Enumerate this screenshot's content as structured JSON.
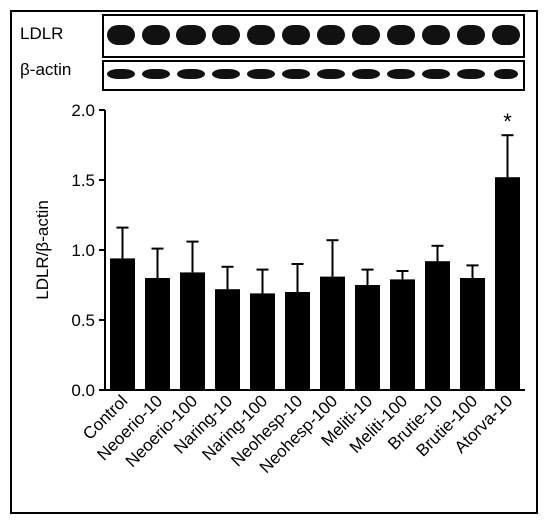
{
  "blots": {
    "ldlr_label": "LDLR",
    "actin_label": "β-actin"
  },
  "chart_data": {
    "type": "bar",
    "ylabel": "LDLR/β-actin",
    "xlabel": "",
    "ylim": [
      0,
      2.0
    ],
    "yticks": [
      "0.0",
      "0.5",
      "1.0",
      "1.5",
      "2.0"
    ],
    "categories": [
      "Control",
      "Neoerio-10",
      "Neoerio-100",
      "Naring-10",
      "Naring-100",
      "Neohesp-10",
      "Neohesp-100",
      "Meliti-10",
      "Meliti-100",
      "Brutie-10",
      "Brutie-100",
      "Atorva-10"
    ],
    "values": [
      0.94,
      0.8,
      0.84,
      0.72,
      0.69,
      0.7,
      0.81,
      0.75,
      0.79,
      0.92,
      0.8,
      1.52
    ],
    "errors": [
      0.22,
      0.21,
      0.22,
      0.16,
      0.17,
      0.2,
      0.26,
      0.11,
      0.06,
      0.11,
      0.09,
      0.3
    ],
    "annotations": [
      {
        "category": "Atorva-10",
        "text": "*"
      }
    ],
    "bar_color": "#000000"
  }
}
